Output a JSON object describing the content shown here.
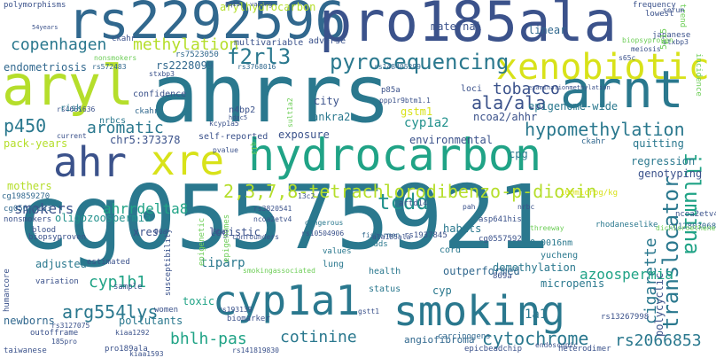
{
  "palette": {
    "dark_purple": "#440154",
    "indigo": "#3b528b",
    "blue": "#31688e",
    "teal_dark": "#2a788e",
    "teal": "#21918c",
    "green_teal": "#20a386",
    "green": "#35b779",
    "light_green": "#6ece58",
    "lime": "#b5de2b",
    "yellow": "#d8e219"
  },
  "words": [
    "cg05575921",
    "ahrrs",
    "rs2292596",
    "pro185ala",
    "aryl",
    "hydrocarbon",
    "arnt",
    "smoking",
    "cyp1a1",
    "xenobiotic",
    "ahr",
    "xre",
    "pyrosequencing",
    "f2rl3",
    "copenhagen",
    "methylation",
    "illumina",
    "translocator",
    "2,3,7,8-tetrachlorodibenzo-p-dioxin",
    "hypomethylation",
    "tobacco",
    "ala/ala",
    "p450",
    "aromatic",
    "cotinine",
    "tcdd",
    "arg554lys",
    "cyp1b1",
    "bhlh-pas",
    "cytochrome",
    "rs2066853",
    "smokers",
    "ahrrdelta8",
    "cigarette",
    "azoospermia",
    "endometriosis",
    "epigenome-wide",
    "pack-years",
    "chr5:373378",
    "cyp1a2",
    "ncoa2/ahhr",
    "ankra2",
    "oligozoospermia",
    "genotyping",
    "regression",
    "quitting",
    "adjusted",
    "tiparp",
    "polycyclic",
    "newborns",
    "pollutants",
    "1a1",
    "exposure",
    "environmental",
    "demethylation",
    "micropenis",
    "outperformed",
    "angiofibroma",
    "linear",
    "maternal",
    "multivariable",
    "arylhydrocarbon",
    "adverse",
    "logistic",
    "xres",
    "mothers",
    "cg05636183",
    "cg19859270",
    "cg12803068",
    "rs2228099",
    "rs7523050",
    "rs3768016",
    "rs148405299",
    "rs572483",
    "confidence",
    "self-reported",
    "epigenetic",
    "fishermen",
    "toxic",
    "women",
    "biomarker",
    "0.0016nm",
    "yucheng",
    "rhodaneselike",
    "dichloroethene",
    "humancore",
    "nonsmokers",
    "biopsyproven",
    "susceptibility",
    "variation",
    "outofframe",
    "taiwanese",
    "pro189ala",
    "frequency",
    "lowest",
    "japanese",
    "incidence",
    "trend",
    "polymorphisms",
    "city",
    "cpg",
    "cyp",
    "cord",
    "values",
    "health",
    "lung",
    "status",
    "habits",
    "carcinogens",
    "heterodimer",
    "epicbeadchip",
    "p85a",
    "ppp1r9btm1.1",
    "loci",
    "ckahr",
    "ckahr",
    "n4bp2",
    "hdac5",
    "sult1a2",
    "gstm1",
    "cg0557592",
    "869a",
    "rs1937845",
    "rs193139",
    "rs3127075",
    "rs13267998",
    "rs141819830",
    "rs10504906",
    "rs3820541",
    "rs4661636",
    "stxbp3",
    "5p15",
    "examinationmethylation",
    "sample",
    "estimated",
    "risk",
    "nrbcs",
    "dangerous",
    "odds",
    "threeway",
    "100microg/kg",
    "ala185ala",
    "kcyp1a5",
    "confounders",
    "epigenomes",
    "nrbc",
    "ckahr",
    "pah",
    "ncoa2etv4",
    "artd14",
    "asp641his",
    "ncoa2etv4",
    "gstt1",
    "9ba",
    "96a",
    "185pro",
    "kiaa1593",
    "kiaa1292",
    "blood",
    "q13",
    "8q13",
    "54years",
    "vaping",
    "current",
    "smokingassociated",
    "13c2",
    "nonsmokers",
    "biopsyproven",
    "endoscopic",
    "serum",
    "meiosis",
    "s65c",
    "stxbp3",
    "pvalue",
    "cytoplasmic",
    "rs2228099",
    "adipocytes"
  ]
}
